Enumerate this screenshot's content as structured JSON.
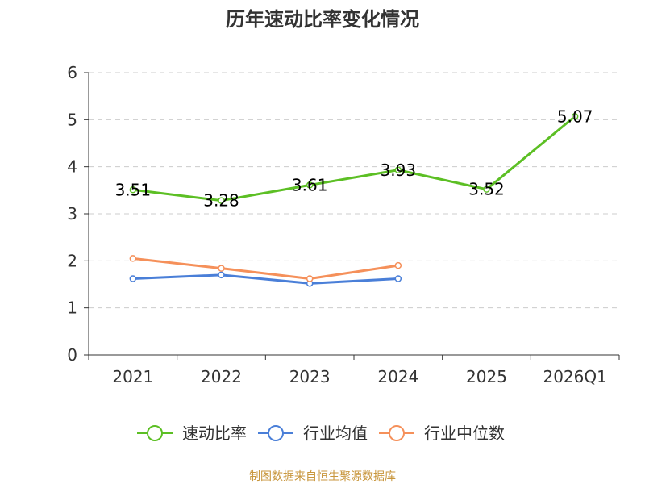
{
  "chart_data": {
    "type": "line",
    "title": "历年速动比率变化情况",
    "categories": [
      "2021",
      "2022",
      "2023",
      "2024",
      "2025",
      "2026Q1"
    ],
    "ylim": [
      0,
      6
    ],
    "yticks": [
      "0",
      "1",
      "2",
      "3",
      "4",
      "5",
      "6"
    ],
    "grid": true,
    "legend_position": "bottom",
    "series": [
      {
        "name": "速动比率",
        "color": "#5cbf24",
        "values": [
          3.51,
          3.28,
          3.61,
          3.93,
          3.52,
          5.07
        ],
        "labels": [
          "3.51",
          "3.28",
          "3.61",
          "3.93",
          "3.52",
          "5.07"
        ],
        "show_labels": true
      },
      {
        "name": "行业均值",
        "color": "#4a7fd8",
        "values": [
          1.62,
          1.7,
          1.52,
          1.62,
          null,
          null
        ],
        "show_labels": false
      },
      {
        "name": "行业中位数",
        "color": "#f5905a",
        "values": [
          2.05,
          1.84,
          1.62,
          1.9,
          null,
          null
        ],
        "show_labels": false
      }
    ],
    "footer": "制图数据来自恒生聚源数据库",
    "footer_color": "#c8963c"
  }
}
